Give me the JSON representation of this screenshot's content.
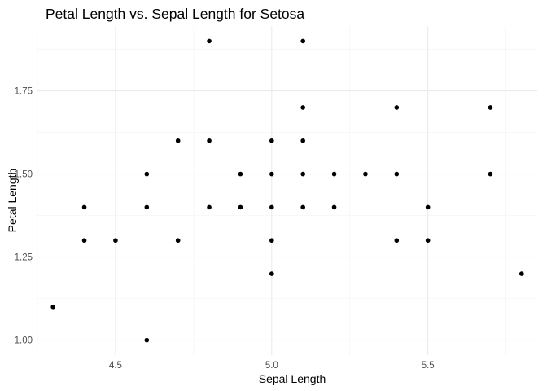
{
  "chart_data": {
    "type": "scatter",
    "title": "Petal Length vs. Sepal Length for Setosa",
    "xlabel": "Sepal Length",
    "ylabel": "Petal Length",
    "xlim": [
      4.25,
      5.85
    ],
    "ylim": [
      0.955,
      1.945
    ],
    "x_ticks": [
      4.5,
      5.0,
      5.5
    ],
    "x_tick_labels": [
      "4.5",
      "5.0",
      "5.5"
    ],
    "y_ticks": [
      1.0,
      1.25,
      1.5,
      1.75
    ],
    "y_tick_labels": [
      "1.00",
      "1.25",
      "1.50",
      "1.75"
    ],
    "grid": true,
    "legend": "none",
    "point_color": "#000000",
    "points": [
      {
        "x": 4.3,
        "y": 1.1
      },
      {
        "x": 4.4,
        "y": 1.3
      },
      {
        "x": 4.4,
        "y": 1.4
      },
      {
        "x": 4.5,
        "y": 1.3
      },
      {
        "x": 4.6,
        "y": 1.0
      },
      {
        "x": 4.6,
        "y": 1.4
      },
      {
        "x": 4.6,
        "y": 1.5
      },
      {
        "x": 4.7,
        "y": 1.3
      },
      {
        "x": 4.7,
        "y": 1.6
      },
      {
        "x": 4.8,
        "y": 1.4
      },
      {
        "x": 4.8,
        "y": 1.6
      },
      {
        "x": 4.8,
        "y": 1.9
      },
      {
        "x": 4.9,
        "y": 1.4
      },
      {
        "x": 4.9,
        "y": 1.5
      },
      {
        "x": 5.0,
        "y": 1.2
      },
      {
        "x": 5.0,
        "y": 1.3
      },
      {
        "x": 5.0,
        "y": 1.4
      },
      {
        "x": 5.0,
        "y": 1.5
      },
      {
        "x": 5.0,
        "y": 1.6
      },
      {
        "x": 5.1,
        "y": 1.4
      },
      {
        "x": 5.1,
        "y": 1.5
      },
      {
        "x": 5.1,
        "y": 1.6
      },
      {
        "x": 5.1,
        "y": 1.7
      },
      {
        "x": 5.1,
        "y": 1.9
      },
      {
        "x": 5.2,
        "y": 1.4
      },
      {
        "x": 5.2,
        "y": 1.5
      },
      {
        "x": 5.3,
        "y": 1.5
      },
      {
        "x": 5.4,
        "y": 1.3
      },
      {
        "x": 5.4,
        "y": 1.5
      },
      {
        "x": 5.4,
        "y": 1.7
      },
      {
        "x": 5.5,
        "y": 1.3
      },
      {
        "x": 5.5,
        "y": 1.4
      },
      {
        "x": 5.7,
        "y": 1.5
      },
      {
        "x": 5.7,
        "y": 1.7
      },
      {
        "x": 5.8,
        "y": 1.2
      }
    ]
  }
}
